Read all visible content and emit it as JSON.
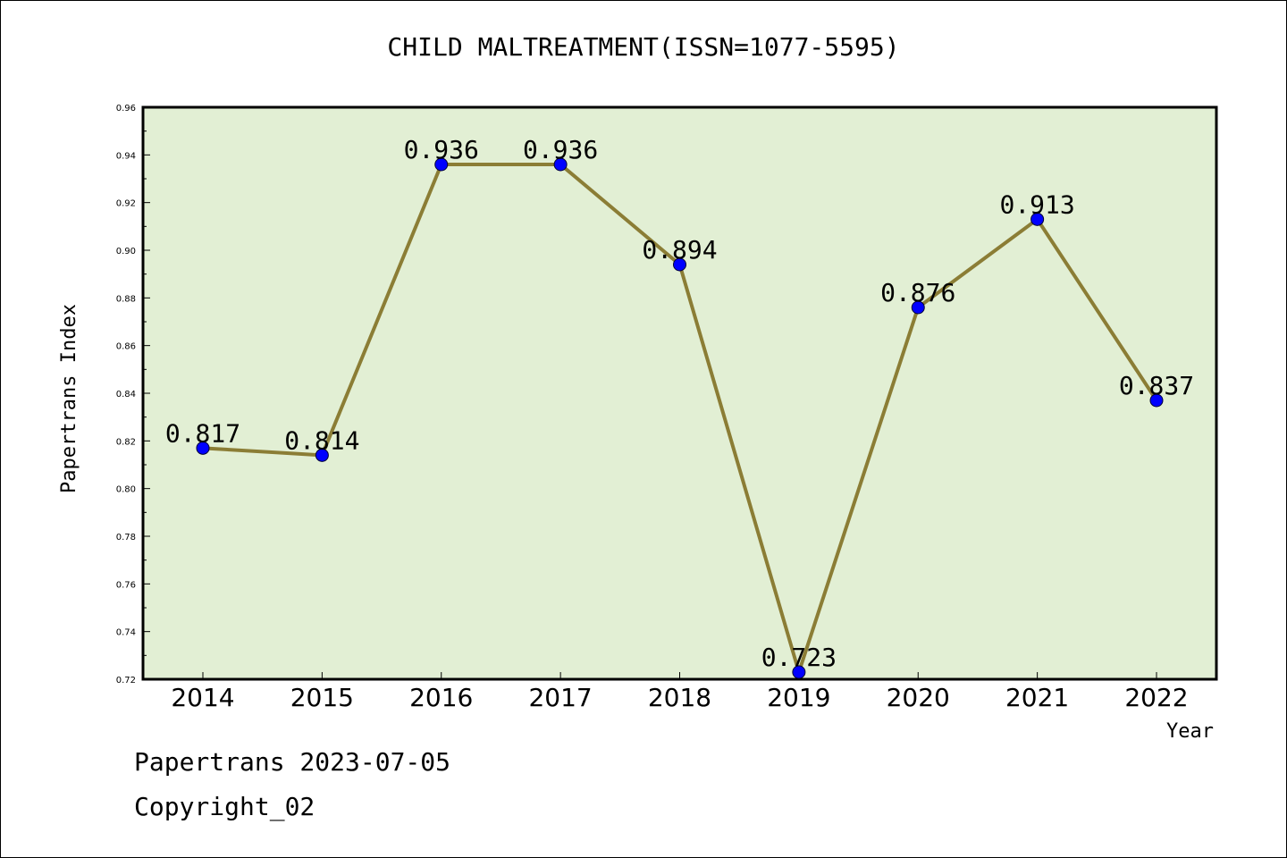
{
  "chart_data": {
    "type": "line",
    "title": "CHILD MALTREATMENT(ISSN=1077-5595)",
    "xlabel": "Year",
    "ylabel": "Papertrans Index",
    "categories": [
      "2014",
      "2015",
      "2016",
      "2017",
      "2018",
      "2019",
      "2020",
      "2021",
      "2022"
    ],
    "values": [
      0.817,
      0.814,
      0.936,
      0.936,
      0.894,
      0.723,
      0.876,
      0.913,
      0.837
    ],
    "data_labels": [
      "0.817",
      "0.814",
      "0.936",
      "0.936",
      "0.894",
      "0.723",
      "0.876",
      "0.913",
      "0.837"
    ],
    "ylim": [
      0.72,
      0.96
    ],
    "yticks": [
      "0.72",
      "0.74",
      "0.76",
      "0.78",
      "0.80",
      "0.82",
      "0.84",
      "0.86",
      "0.88",
      "0.90",
      "0.92",
      "0.94",
      "0.96"
    ],
    "grid": false,
    "colors": {
      "plot_background": "#e2efd4",
      "line": "#8b7d35",
      "marker": "#0000ff"
    }
  },
  "footer": {
    "line1": "Papertrans 2023-07-05",
    "line2": "Copyright_02"
  }
}
